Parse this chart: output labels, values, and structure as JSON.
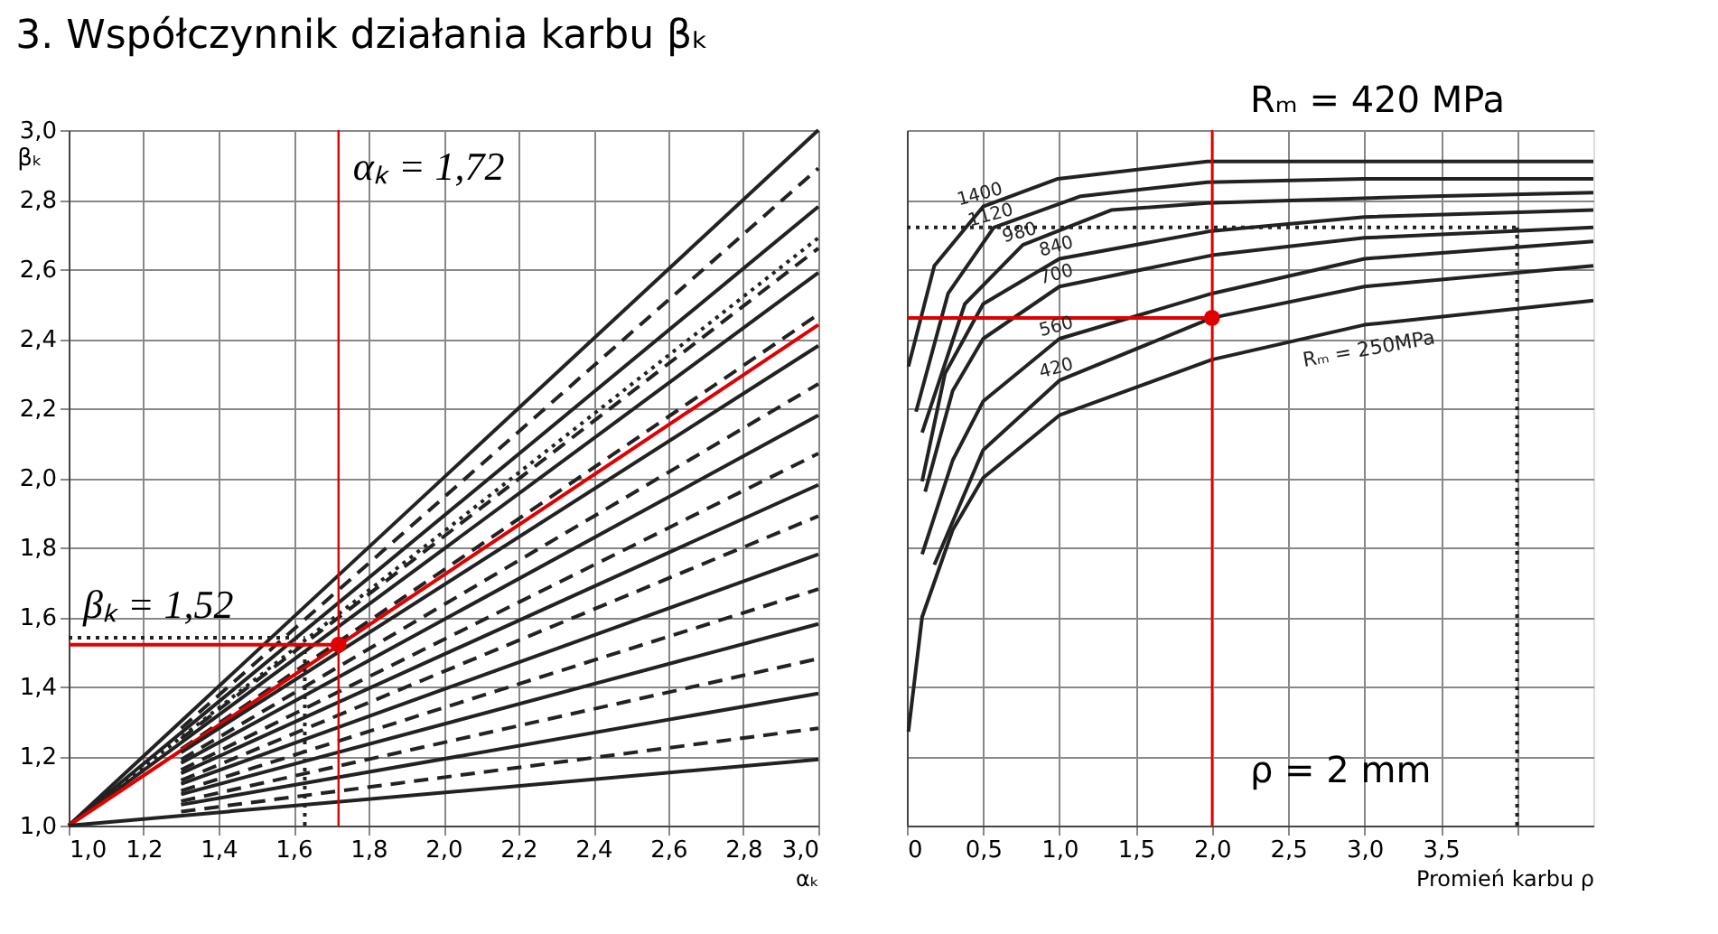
{
  "chart_data": [
    {
      "type": "line",
      "title": "3. Współczynnik działania karbu βₖ",
      "xlabel": "αₖ",
      "ylabel": "βₖ",
      "xlim": [
        1.0,
        3.0
      ],
      "ylim": [
        1.0,
        3.0
      ],
      "xticks": [
        {
          "value": 1.0,
          "label": "1,0"
        },
        {
          "value": 1.2,
          "label": "1,2"
        },
        {
          "value": 1.4,
          "label": "1,4"
        },
        {
          "value": 1.6,
          "label": "1,6"
        },
        {
          "value": 1.8,
          "label": "1,8"
        },
        {
          "value": 2.0,
          "label": "2,0"
        },
        {
          "value": 2.2,
          "label": "2,2"
        },
        {
          "value": 2.4,
          "label": "2,4"
        },
        {
          "value": 2.6,
          "label": "2,6"
        },
        {
          "value": 2.8,
          "label": "2,8"
        },
        {
          "value": 3.0,
          "label": "3,0"
        }
      ],
      "yticks": [
        {
          "value": 1.0,
          "label": "1,0"
        },
        {
          "value": 1.2,
          "label": "1,2"
        },
        {
          "value": 1.4,
          "label": "1,4"
        },
        {
          "value": 1.6,
          "label": "1,6"
        },
        {
          "value": 1.8,
          "label": "1,8"
        },
        {
          "value": 2.0,
          "label": "2,0"
        },
        {
          "value": 2.2,
          "label": "2,2"
        },
        {
          "value": 2.4,
          "label": "2,4"
        },
        {
          "value": 2.6,
          "label": "2,6"
        },
        {
          "value": 2.8,
          "label": "2,8"
        },
        {
          "value": 3.0,
          "label": "3,0"
        }
      ],
      "grid": true,
      "series": [
        {
          "color": "#222222",
          "x": [
            1.0,
            3.0
          ],
          "values": [
            1.0,
            3.0
          ]
        },
        {
          "color": "#222222",
          "line_style": "dashed",
          "x": [
            1.3,
            3.0
          ],
          "values": [
            1.28,
            2.89
          ]
        },
        {
          "color": "#222222",
          "x": [
            1.0,
            3.0
          ],
          "values": [
            1.0,
            2.78
          ]
        },
        {
          "color": "#222222",
          "line_style": "dotted",
          "x": [
            1.0,
            3.0
          ],
          "values": [
            1.0,
            2.69
          ]
        },
        {
          "color": "#222222",
          "line_style": "dashed",
          "x": [
            1.3,
            3.0
          ],
          "values": [
            1.25,
            2.66
          ]
        },
        {
          "color": "#222222",
          "x": [
            1.0,
            3.0
          ],
          "values": [
            1.0,
            2.59
          ]
        },
        {
          "color": "#222222",
          "line_style": "dashed",
          "x": [
            1.3,
            3.0
          ],
          "values": [
            1.22,
            2.47
          ]
        },
        {
          "color": "#e00000",
          "x": [
            1.0,
            3.0
          ],
          "values": [
            1.0,
            2.44
          ]
        },
        {
          "color": "#222222",
          "x": [
            1.3,
            3.0
          ],
          "values": [
            1.21,
            2.38
          ]
        },
        {
          "color": "#222222",
          "line_style": "dashed",
          "x": [
            1.3,
            3.0
          ],
          "values": [
            1.19,
            2.27
          ]
        },
        {
          "color": "#222222",
          "x": [
            1.3,
            3.0
          ],
          "values": [
            1.18,
            2.18
          ]
        },
        {
          "color": "#222222",
          "line_style": "dashed",
          "x": [
            1.3,
            3.0
          ],
          "values": [
            1.16,
            2.07
          ]
        },
        {
          "color": "#222222",
          "x": [
            1.3,
            3.0
          ],
          "values": [
            1.15,
            1.98
          ]
        },
        {
          "color": "#222222",
          "line_style": "dashed",
          "x": [
            1.3,
            3.0
          ],
          "values": [
            1.13,
            1.89
          ]
        },
        {
          "color": "#222222",
          "x": [
            1.3,
            3.0
          ],
          "values": [
            1.12,
            1.78
          ]
        },
        {
          "color": "#222222",
          "line_style": "dashed",
          "x": [
            1.3,
            3.0
          ],
          "values": [
            1.1,
            1.68
          ]
        },
        {
          "color": "#222222",
          "x": [
            1.3,
            3.0
          ],
          "values": [
            1.09,
            1.58
          ]
        },
        {
          "color": "#222222",
          "line_style": "dashed",
          "x": [
            1.3,
            3.0
          ],
          "values": [
            1.07,
            1.48
          ]
        },
        {
          "color": "#222222",
          "x": [
            1.3,
            3.0
          ],
          "values": [
            1.06,
            1.38
          ]
        },
        {
          "color": "#222222",
          "line_style": "dashed",
          "x": [
            1.3,
            3.0
          ],
          "values": [
            1.04,
            1.28
          ]
        },
        {
          "color": "#222222",
          "x": [
            1.0,
            3.0
          ],
          "values": [
            1.0,
            1.19
          ]
        },
        {
          "color": "#e00000",
          "x": [
            1.0,
            1.72
          ],
          "values": [
            1.52,
            1.52
          ]
        },
        {
          "color": "#222222",
          "line_style": "dotted",
          "x": [
            1.0,
            1.63
          ],
          "values": [
            1.54,
            1.54
          ]
        },
        {
          "color": "#222222",
          "line_style": "dotted",
          "x": [
            1.63,
            1.63
          ],
          "values": [
            1.0,
            1.5
          ]
        },
        {
          "type": "scatter",
          "color": "#e00000",
          "x": [
            1.72
          ],
          "values": [
            1.52
          ]
        }
      ],
      "ref_lines": [
        {
          "axis": "x",
          "value": 1.72,
          "color": "#e00000"
        }
      ],
      "annotations": [
        {
          "text": "αₖ = 1,72",
          "x": 1.72,
          "y": 2.78
        },
        {
          "text": "βₖ = 1,52",
          "x": 1.0,
          "y": 1.52
        }
      ]
    },
    {
      "type": "line",
      "xlabel": "Promień karbu ρ",
      "xlim": [
        0,
        4.5
      ],
      "ylim": [
        1.0,
        3.0
      ],
      "xticks": [
        0,
        {
          "value": 0.5,
          "label": "0,5"
        },
        {
          "value": 1.0,
          "label": "1,0"
        },
        {
          "value": 1.5,
          "label": "1,5"
        },
        {
          "value": 2.0,
          "label": "2,0"
        },
        {
          "value": 2.5,
          "label": "2,5"
        },
        {
          "value": 3.0,
          "label": "3,0"
        },
        {
          "value": 3.5,
          "label": "3,5"
        },
        {
          "value": 4.0,
          "label": null
        }
      ],
      "yticks": [
        {
          "value": 1.0,
          "label": null
        },
        {
          "value": 1.2,
          "label": null
        },
        {
          "value": 1.4,
          "label": null
        },
        {
          "value": 1.6,
          "label": null
        },
        {
          "value": 1.8,
          "label": null
        },
        {
          "value": 2.0,
          "label": null
        },
        {
          "value": 2.2,
          "label": null
        },
        {
          "value": 2.4,
          "label": null
        },
        {
          "value": 2.6,
          "label": null
        },
        {
          "value": 2.8,
          "label": null
        },
        {
          "value": 3.0,
          "label": null
        }
      ],
      "tick_labels": "x",
      "grid": true,
      "series": [
        {
          "color": "#222222",
          "x": [
            0.01,
            0.18,
            0.5,
            0.99,
            1.97,
            3.0,
            4.5
          ],
          "values": [
            2.32,
            2.61,
            2.78,
            2.86,
            2.91,
            2.91,
            2.91
          ]
        },
        {
          "color": "#222222",
          "x": [
            0.06,
            0.27,
            0.57,
            1.14,
            1.97,
            3.0,
            4.5
          ],
          "values": [
            2.19,
            2.53,
            2.72,
            2.81,
            2.85,
            2.86,
            2.86
          ]
        },
        {
          "color": "#222222",
          "x": [
            0.1,
            0.38,
            0.76,
            1.34,
            1.97,
            3.45,
            4.5
          ],
          "values": [
            2.13,
            2.5,
            2.67,
            2.77,
            2.79,
            2.81,
            2.82
          ]
        },
        {
          "color": "#222222",
          "x": [
            0.1,
            0.25,
            0.5,
            1.0,
            2.0,
            3.0,
            4.5
          ],
          "values": [
            1.99,
            2.3,
            2.5,
            2.63,
            2.71,
            2.75,
            2.77
          ]
        },
        {
          "color": "#222222",
          "x": [
            0.12,
            0.3,
            0.5,
            1.0,
            2.0,
            3.0,
            4.5
          ],
          "values": [
            1.96,
            2.25,
            2.4,
            2.55,
            2.64,
            2.69,
            2.72
          ]
        },
        {
          "color": "#222222",
          "x": [
            0.1,
            0.3,
            0.5,
            1.0,
            2.0,
            3.0,
            4.5
          ],
          "values": [
            1.78,
            2.05,
            2.22,
            2.4,
            2.53,
            2.63,
            2.68
          ]
        },
        {
          "color": "#222222",
          "x": [
            0.18,
            0.5,
            1.0,
            2.0,
            3.0,
            4.5
          ],
          "values": [
            1.75,
            2.08,
            2.28,
            2.46,
            2.55,
            2.61
          ]
        },
        {
          "color": "#222222",
          "x": [
            0.01,
            0.1,
            0.3,
            0.5,
            1.0,
            2.0,
            3.0,
            4.5
          ],
          "values": [
            1.27,
            1.6,
            1.85,
            2.0,
            2.18,
            2.34,
            2.44,
            2.51
          ]
        },
        {
          "color": "#e00000",
          "x": [
            0,
            2.0
          ],
          "values": [
            2.46,
            2.46
          ]
        },
        {
          "color": "#222222",
          "line_style": "dotted",
          "x": [
            0,
            4.0
          ],
          "values": [
            2.72,
            2.72
          ]
        },
        {
          "color": "#222222",
          "line_style": "dotted",
          "x": [
            4.0,
            4.0
          ],
          "values": [
            1.0,
            2.72
          ]
        },
        {
          "type": "scatter",
          "color": "#e00000",
          "x": [
            2.0
          ],
          "values": [
            2.46
          ]
        }
      ],
      "ref_lines": [
        {
          "axis": "x",
          "value": 2.0,
          "color": "#e00000"
        }
      ],
      "annotations": [
        "Rₘ = 420 MPa",
        "ρ = 2 mm",
        {
          "text": "1400",
          "x": 0.5,
          "y": 2.78
        },
        {
          "text": "1120",
          "x": 0.57,
          "y": 2.72
        },
        {
          "text": "980",
          "x": 0.76,
          "y": 2.67
        },
        {
          "text": "840",
          "x": 1.0,
          "y": 2.63
        },
        {
          "text": "700",
          "x": 1.0,
          "y": 2.55
        },
        {
          "text": "560",
          "x": 1.0,
          "y": 2.4
        },
        {
          "text": "420",
          "x": 1.0,
          "y": 2.28
        },
        {
          "text": "Rₘ = 250MPa",
          "x": 3.0,
          "y": 2.44
        }
      ]
    }
  ]
}
